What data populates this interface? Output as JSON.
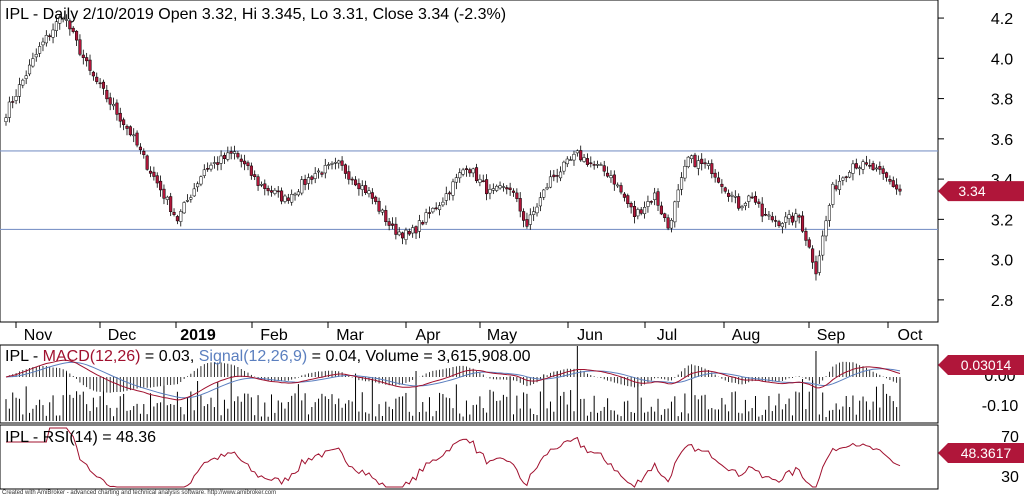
{
  "chart_data": [
    {
      "type": "candlestick",
      "title": "IPL - Daily 2/10/2019 Open 3.32, Hi 3.345, Lo 3.31, Close 3.34 (-2.3%)",
      "ylim": [
        2.7,
        4.25
      ],
      "y_ticks": [
        "4.2",
        "4.0",
        "3.8",
        "3.6",
        "3.4",
        "3.2",
        "3.0",
        "2.8"
      ],
      "x_labels": [
        "Nov",
        "Dec",
        "2019",
        "Feb",
        "Mar",
        "Apr",
        "May",
        "Jun",
        "Jul",
        "Aug",
        "Sep",
        "Oct"
      ],
      "horizontal_lines": [
        3.54,
        3.15
      ],
      "last_price_label": "3.34",
      "close_anchors": [
        [
          0,
          3.73
        ],
        [
          10,
          4.05
        ],
        [
          17,
          4.22
        ],
        [
          25,
          3.93
        ],
        [
          37,
          3.63
        ],
        [
          42,
          3.47
        ],
        [
          51,
          3.2
        ],
        [
          59,
          3.45
        ],
        [
          68,
          3.53
        ],
        [
          75,
          3.38
        ],
        [
          83,
          3.3
        ],
        [
          92,
          3.43
        ],
        [
          99,
          3.47
        ],
        [
          108,
          3.33
        ],
        [
          115,
          3.15
        ],
        [
          120,
          3.12
        ],
        [
          130,
          3.3
        ],
        [
          137,
          3.47
        ],
        [
          144,
          3.33
        ],
        [
          150,
          3.36
        ],
        [
          155,
          3.17
        ],
        [
          162,
          3.4
        ],
        [
          170,
          3.52
        ],
        [
          180,
          3.42
        ],
        [
          187,
          3.22
        ],
        [
          193,
          3.32
        ],
        [
          197,
          3.16
        ],
        [
          203,
          3.5
        ],
        [
          210,
          3.45
        ],
        [
          218,
          3.27
        ],
        [
          222,
          3.32
        ],
        [
          225,
          3.22
        ],
        [
          230,
          3.19
        ],
        [
          236,
          3.21
        ],
        [
          238,
          3.11
        ],
        [
          241,
          2.95
        ],
        [
          246,
          3.35
        ],
        [
          252,
          3.48
        ],
        [
          258,
          3.45
        ],
        [
          262,
          3.4
        ],
        [
          266,
          3.34
        ]
      ],
      "series": [
        {
          "name": "MACD(12,26)",
          "value": "0.03",
          "color": "#a0102e"
        },
        {
          "name": "Signal(12,26,9)",
          "value": "0.04",
          "color": "#5b7fbf"
        },
        {
          "name": "Volume",
          "value": "3,615,908.00",
          "color": "#000000"
        }
      ]
    }
  ],
  "macd_panel": {
    "prefix": "IPL - ",
    "macd_label": "MACD(12,26)",
    "macd_value": " = 0.03, ",
    "signal_label": "Signal(12,26,9)",
    "signal_value": " = 0.04, Volume = 3,615,908.00",
    "y_ticks": [
      "0.00",
      "-0.10"
    ],
    "last_value_label": "0.03014"
  },
  "rsi_panel": {
    "label": "IPL - RSI(14) = 48.36",
    "y_ticks": [
      "70",
      "30"
    ],
    "last_value_label": "48.3617"
  },
  "colors": {
    "up": "#ffffff",
    "down": "#b0163a",
    "outline": "#000000",
    "hline": "#7f96c8",
    "macd": "#a0102e",
    "signal": "#5b7fbf",
    "tag_bg": "#b0163a"
  },
  "footer": {
    "credit": "Created with AmiBroker - advanced charting and technical analysis software. http://www.amibroker.com"
  }
}
